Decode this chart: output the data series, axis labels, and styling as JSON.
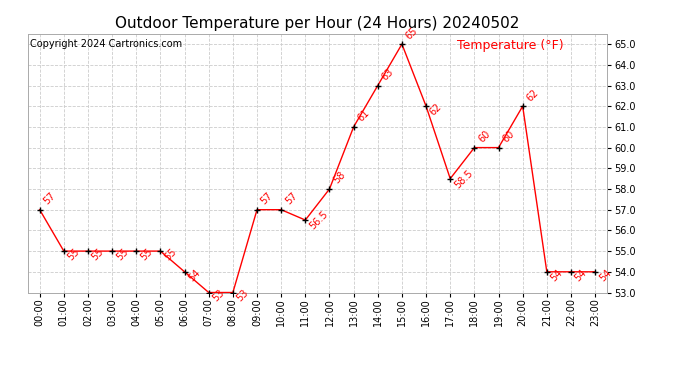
{
  "title": "Outdoor Temperature per Hour (24 Hours) 20240502",
  "copyright": "Copyright 2024 Cartronics.com",
  "legend_label": "Temperature (°F)",
  "hours": [
    "00:00",
    "01:00",
    "02:00",
    "03:00",
    "04:00",
    "05:00",
    "06:00",
    "07:00",
    "08:00",
    "09:00",
    "10:00",
    "11:00",
    "12:00",
    "13:00",
    "14:00",
    "15:00",
    "16:00",
    "17:00",
    "18:00",
    "19:00",
    "20:00",
    "21:00",
    "22:00",
    "23:00"
  ],
  "temps": [
    57,
    55,
    55,
    55,
    55,
    55,
    54,
    53,
    53,
    57,
    57,
    56.5,
    58,
    61,
    63,
    65,
    62,
    58.5,
    60,
    60,
    62,
    54,
    54,
    54
  ],
  "display_labels": [
    "57",
    "55",
    "55",
    "55",
    "55",
    "55",
    "54",
    "53",
    "53",
    "57",
    "57",
    "56.5",
    "58",
    "61",
    "63",
    "65",
    "62",
    "58.5",
    "60",
    "60",
    "62",
    "54",
    "54",
    "54"
  ],
  "label_above": [
    true,
    false,
    false,
    false,
    false,
    false,
    false,
    false,
    false,
    true,
    true,
    false,
    true,
    true,
    true,
    true,
    false,
    false,
    true,
    true,
    true,
    false,
    false,
    false
  ],
  "ylim_min": 53.0,
  "ylim_max": 65.5,
  "yticks": [
    53.0,
    54.0,
    55.0,
    56.0,
    57.0,
    58.0,
    59.0,
    60.0,
    61.0,
    62.0,
    63.0,
    64.0,
    65.0
  ],
  "line_color": "red",
  "label_color": "red",
  "grid_color": "#cccccc",
  "bg_color": "white",
  "title_fontsize": 11,
  "copyright_fontsize": 7,
  "legend_fontsize": 9,
  "label_fontsize": 7,
  "tick_label_fontsize": 7
}
